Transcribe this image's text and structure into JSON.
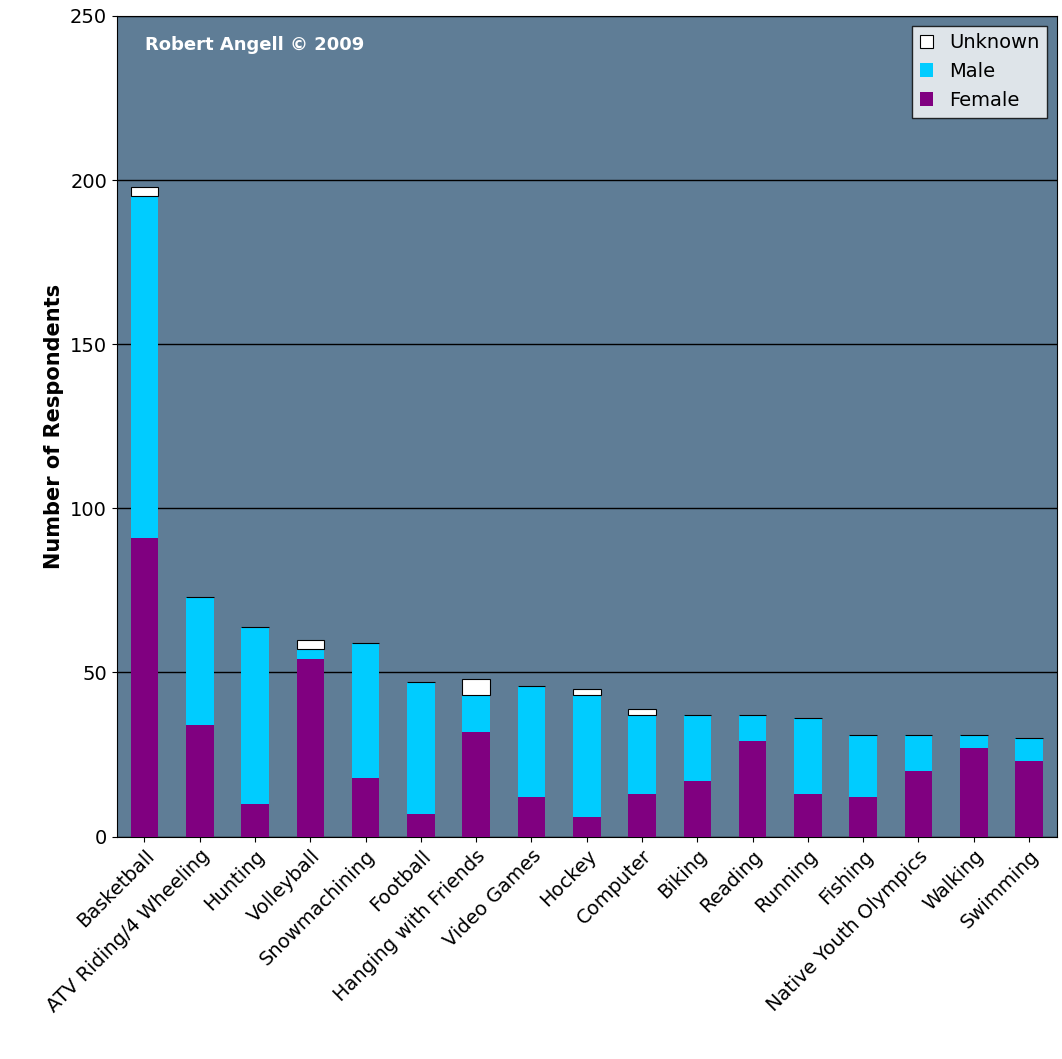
{
  "chart_data": {
    "type": "bar",
    "stacked": true,
    "ylabel": "Number of Respondents",
    "annotation": "Robert Angell © 2009",
    "categories": [
      "Basketball",
      "ATV Riding/4 Wheeling",
      "Hunting",
      "Volleyball",
      "Snowmachining",
      "Football",
      "Hanging with Friends",
      "Video Games",
      "Hockey",
      "Computer",
      "Biking",
      "Reading",
      "Running",
      "Fishing",
      "Native Youth Olympics",
      "Walking",
      "Swimming"
    ],
    "series": [
      {
        "name": "Female",
        "color": "#800080",
        "values": [
          91,
          34,
          10,
          54,
          18,
          7,
          32,
          12,
          6,
          13,
          17,
          29,
          13,
          12,
          20,
          27,
          23
        ]
      },
      {
        "name": "Male",
        "color": "#00ccff",
        "values": [
          104,
          39,
          54,
          3,
          41,
          40,
          11,
          34,
          37,
          24,
          20,
          8,
          23,
          19,
          11,
          4,
          7
        ]
      },
      {
        "name": "Unknown",
        "color": "#ffffff",
        "values": [
          3,
          0,
          0,
          3,
          0,
          0,
          5,
          0,
          2,
          2,
          0,
          0,
          0,
          0,
          0,
          0,
          0
        ]
      }
    ],
    "ylim": [
      0,
      250
    ],
    "yticks": [
      0,
      50,
      100,
      150,
      200,
      250
    ],
    "grid": true,
    "legend": "upper right"
  }
}
